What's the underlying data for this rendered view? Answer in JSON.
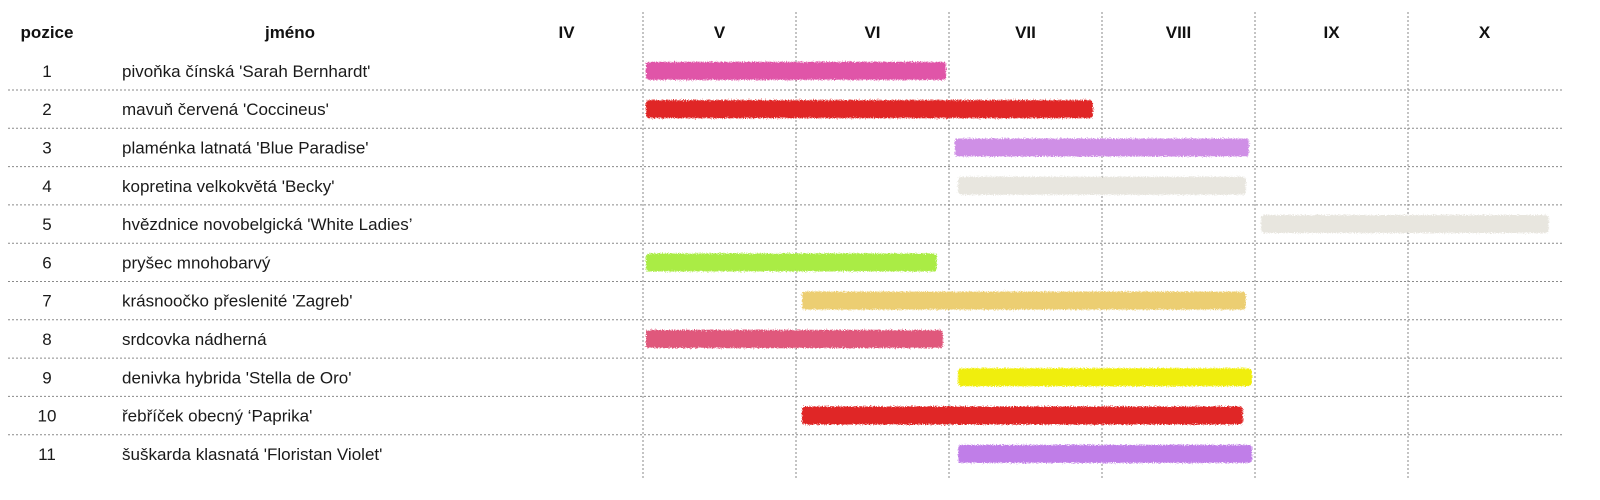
{
  "chart_data": {
    "type": "gantt",
    "columns": {
      "position": "pozice",
      "name": "jméno"
    },
    "months": [
      "IV",
      "V",
      "VI",
      "VII",
      "VIII",
      "IX",
      "X"
    ],
    "month_range": [
      4,
      11
    ],
    "rows": [
      {
        "position": "1",
        "name": "pivoňka čínská 'Sarah Bernhardt'",
        "start": 5.0,
        "end": 6.98,
        "color": "#e055a8"
      },
      {
        "position": "2",
        "name": "mavuň červená 'Coccineus'",
        "start": 5.0,
        "end": 7.94,
        "color": "#e02828"
      },
      {
        "position": "3",
        "name": "plaménka latnatá 'Blue Paradise'",
        "start": 7.02,
        "end": 8.96,
        "color": "#cf8fe6"
      },
      {
        "position": "4",
        "name": "kopretina velkokvětá 'Becky'",
        "start": 7.04,
        "end": 8.94,
        "color": "#e8e6df"
      },
      {
        "position": "5",
        "name": "hvězdnice novobelgická 'White Ladies’",
        "start": 9.02,
        "end": 10.92,
        "color": "#e8e6df"
      },
      {
        "position": "6",
        "name": "pryšec mnohobarvý",
        "start": 5.0,
        "end": 6.92,
        "color": "#aaec45"
      },
      {
        "position": "7",
        "name": "krásnoočko přeslenité 'Zagreb'",
        "start": 6.02,
        "end": 8.94,
        "color": "#ecce72"
      },
      {
        "position": "8",
        "name": "srdcovka nádherná",
        "start": 5.0,
        "end": 6.96,
        "color": "#e0587c"
      },
      {
        "position": "9",
        "name": "denivka hybrida 'Stella de Oro'",
        "start": 7.04,
        "end": 8.98,
        "color": "#f0ee08"
      },
      {
        "position": "10",
        "name": "řebříček obecný ‘Paprika'",
        "start": 6.02,
        "end": 8.92,
        "color": "#e02828"
      },
      {
        "position": "11",
        "name": "šuškarda klasnatá 'Floristan Violet'",
        "start": 7.04,
        "end": 8.98,
        "color": "#c07ee8"
      }
    ]
  }
}
